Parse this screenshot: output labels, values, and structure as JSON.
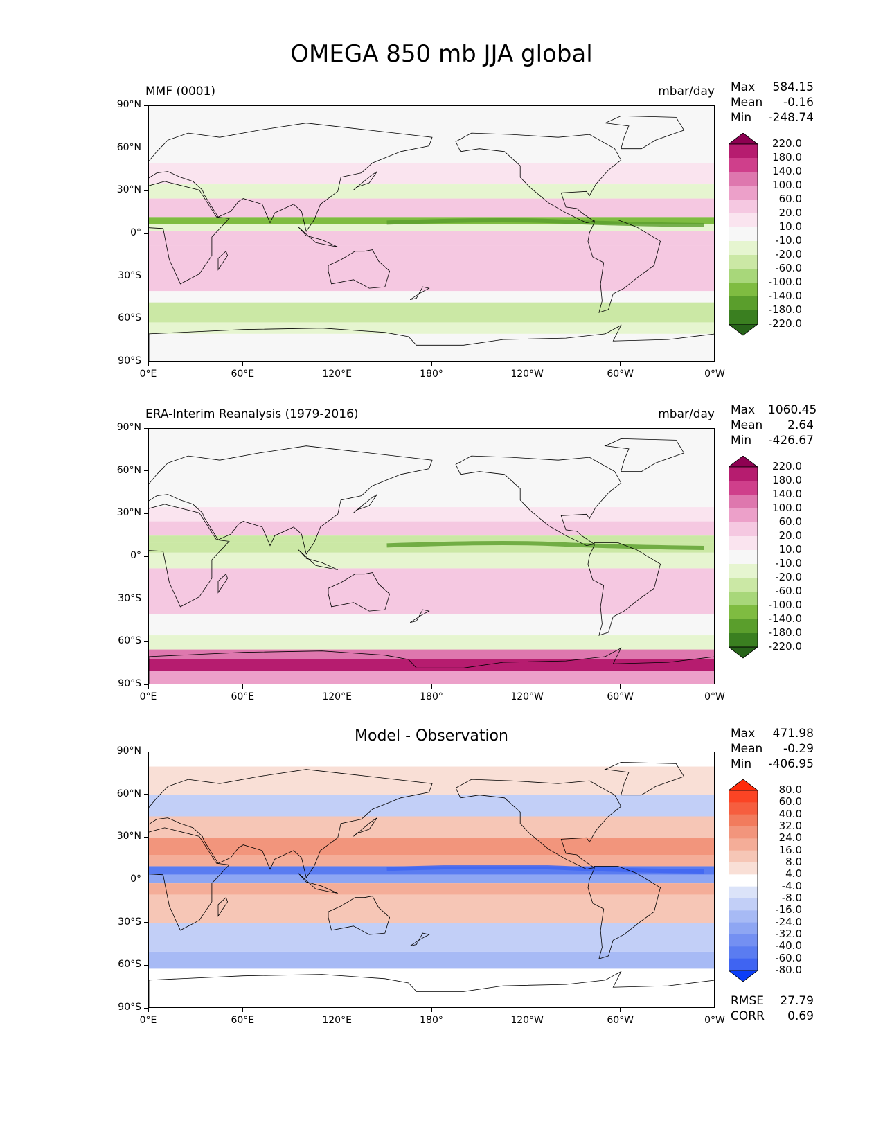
{
  "title": "OMEGA 850 mb JJA global",
  "chart_data": [
    {
      "type": "heatmap",
      "panel": "test",
      "title_left": "MMF (0001)",
      "units": "mbar/day",
      "stats": {
        "max": "584.15",
        "mean": "-0.16",
        "min": "-248.74"
      },
      "x_ticks": [
        "0°E",
        "60°E",
        "120°E",
        "180°",
        "120°W",
        "60°W",
        "0°W"
      ],
      "y_ticks": [
        "90°N",
        "60°N",
        "30°N",
        "0°",
        "30°S",
        "60°S",
        "90°S"
      ],
      "xlim": [
        0,
        360
      ],
      "ylim": [
        -90,
        90
      ],
      "colorbar": {
        "levels": [
          "220.0",
          "180.0",
          "140.0",
          "100.0",
          "60.0",
          "20.0",
          "10.0",
          "-10.0",
          "-20.0",
          "-60.0",
          "-100.0",
          "-140.0",
          "-180.0",
          "-220.0"
        ],
        "colors": [
          "#8e0152",
          "#b61c6f",
          "#cf3f8b",
          "#de77ae",
          "#eca0c9",
          "#f5c8e1",
          "#fae4ef",
          "#f7f7f7",
          "#e6f5d0",
          "#cbe8a5",
          "#a8d77a",
          "#7fbc41",
          "#5a9e2c",
          "#3a7f20",
          "#276419"
        ]
      }
    },
    {
      "type": "heatmap",
      "panel": "reference",
      "title_left": "ERA-Interim Reanalysis (1979-2016)",
      "units": "mbar/day",
      "stats": {
        "max": "1060.45",
        "mean": "2.64",
        "min": "-426.67"
      },
      "x_ticks": [
        "0°E",
        "60°E",
        "120°E",
        "180°",
        "120°W",
        "60°W",
        "0°W"
      ],
      "y_ticks": [
        "90°N",
        "60°N",
        "30°N",
        "0°",
        "30°S",
        "60°S",
        "90°S"
      ],
      "xlim": [
        0,
        360
      ],
      "ylim": [
        -90,
        90
      ],
      "colorbar": {
        "levels": [
          "220.0",
          "180.0",
          "140.0",
          "100.0",
          "60.0",
          "20.0",
          "10.0",
          "-10.0",
          "-20.0",
          "-60.0",
          "-100.0",
          "-140.0",
          "-180.0",
          "-220.0"
        ],
        "colors": [
          "#8e0152",
          "#b61c6f",
          "#cf3f8b",
          "#de77ae",
          "#eca0c9",
          "#f5c8e1",
          "#fae4ef",
          "#f7f7f7",
          "#e6f5d0",
          "#cbe8a5",
          "#a8d77a",
          "#7fbc41",
          "#5a9e2c",
          "#3a7f20",
          "#276419"
        ]
      }
    },
    {
      "type": "heatmap",
      "panel": "difference",
      "title_center": "Model - Observation",
      "stats": {
        "max": "471.98",
        "mean": "-0.29",
        "min": "-406.95"
      },
      "metrics": {
        "rmse": "27.79",
        "corr": "0.69"
      },
      "x_ticks": [
        "0°E",
        "60°E",
        "120°E",
        "180°",
        "120°W",
        "60°W",
        "0°W"
      ],
      "y_ticks": [
        "90°N",
        "60°N",
        "30°N",
        "0°",
        "30°S",
        "60°S",
        "90°S"
      ],
      "xlim": [
        0,
        360
      ],
      "ylim": [
        -90,
        90
      ],
      "colorbar": {
        "levels": [
          "80.0",
          "60.0",
          "40.0",
          "32.0",
          "24.0",
          "16.0",
          "8.0",
          "4.0",
          "-4.0",
          "-8.0",
          "-16.0",
          "-24.0",
          "-32.0",
          "-40.0",
          "-60.0",
          "-80.0"
        ],
        "colors": [
          "#ff2a0a",
          "#fb4424",
          "#f65e3f",
          "#f27b5d",
          "#f2957c",
          "#f4ad98",
          "#f6c6b6",
          "#f9dfd6",
          "#ffffff",
          "#dbe3f9",
          "#c2cff7",
          "#a7baf5",
          "#8ea6f3",
          "#7490f2",
          "#5a7cf1",
          "#3f64f2",
          "#0b3ef8"
        ]
      }
    }
  ],
  "labels": {
    "max": "Max",
    "mean": "Mean",
    "min": "Min",
    "rmse": "RMSE",
    "corr": "CORR"
  }
}
